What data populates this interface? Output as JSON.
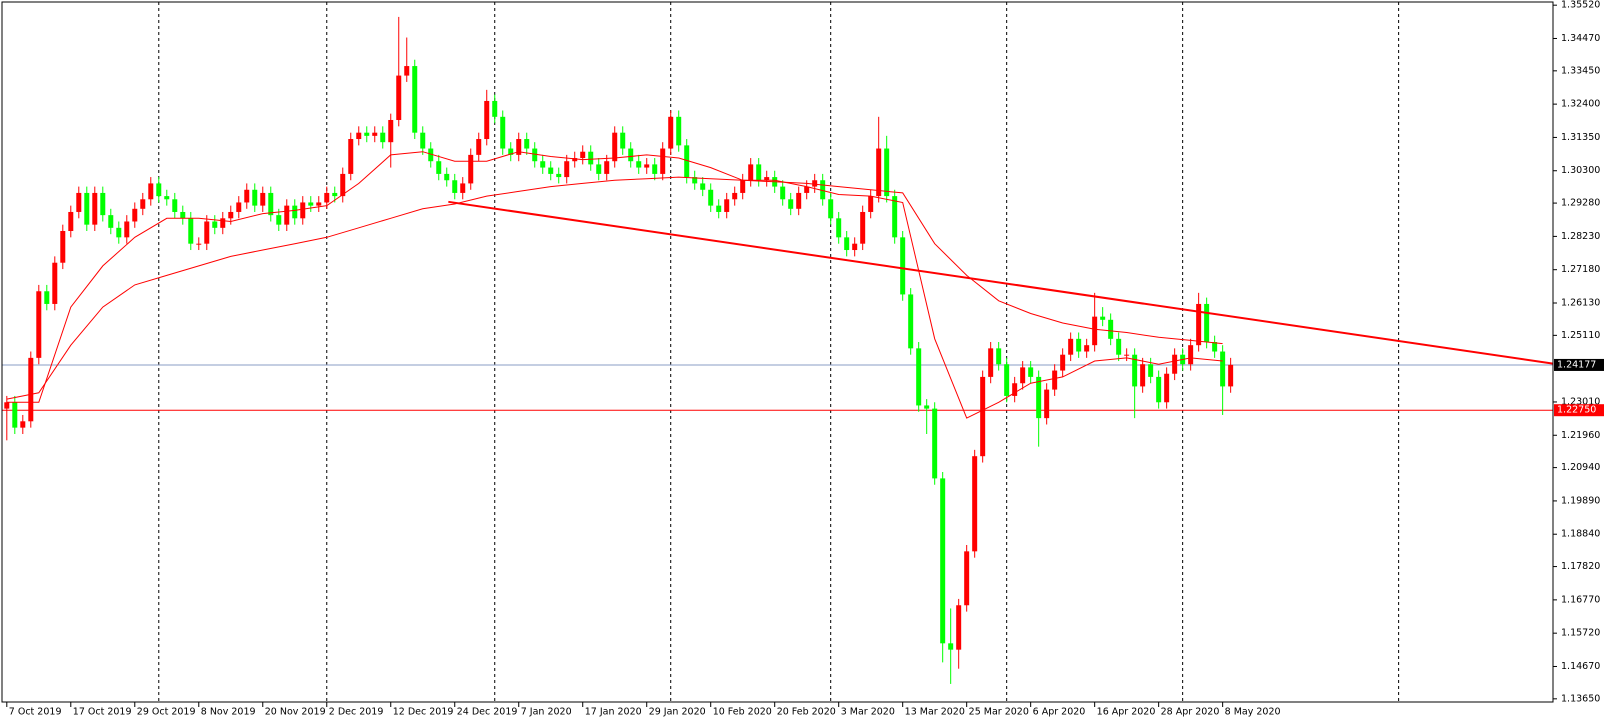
{
  "chart_data": {
    "type": "candlestick",
    "up_color": "#ff0000",
    "down_color": "#00ff00",
    "ylim": [
      1.1355,
      1.3562
    ],
    "xlim": [
      -0.6,
      193.3
    ],
    "yticks": [
      {
        "value": 1.3552,
        "label": "1.35520"
      },
      {
        "value": 1.3447,
        "label": "1.34470"
      },
      {
        "value": 1.3345,
        "label": "1.33450"
      },
      {
        "value": 1.324,
        "label": "1.32400"
      },
      {
        "value": 1.3135,
        "label": "1.31350"
      },
      {
        "value": 1.303,
        "label": "1.30300"
      },
      {
        "value": 1.2928,
        "label": "1.29280"
      },
      {
        "value": 1.2823,
        "label": "1.28230"
      },
      {
        "value": 1.2718,
        "label": "1.27180"
      },
      {
        "value": 1.2613,
        "label": "1.26130"
      },
      {
        "value": 1.2511,
        "label": "1.25110"
      },
      {
        "value": 1.2301,
        "label": "1.23010"
      },
      {
        "value": 1.2196,
        "label": "1.21960"
      },
      {
        "value": 1.2094,
        "label": "1.20940"
      },
      {
        "value": 1.1989,
        "label": "1.19890"
      },
      {
        "value": 1.1884,
        "label": "1.18840"
      },
      {
        "value": 1.1782,
        "label": "1.17820"
      },
      {
        "value": 1.1677,
        "label": "1.16770"
      },
      {
        "value": 1.1572,
        "label": "1.15720"
      },
      {
        "value": 1.1467,
        "label": "1.14670"
      },
      {
        "value": 1.1365,
        "label": "1.13650"
      }
    ],
    "xticks": [
      {
        "value": 0,
        "label": "7 Oct 2019"
      },
      {
        "value": 8,
        "label": "17 Oct 2019"
      },
      {
        "value": 16,
        "label": "29 Oct 2019"
      },
      {
        "value": 24,
        "label": "8 Nov 2019"
      },
      {
        "value": 32,
        "label": "20 Nov 2019"
      },
      {
        "value": 40,
        "label": "2 Dec 2019"
      },
      {
        "value": 48,
        "label": "12 Dec 2019"
      },
      {
        "value": 56,
        "label": "24 Dec 2019"
      },
      {
        "value": 64,
        "label": "7 Jan 2020"
      },
      {
        "value": 72,
        "label": "17 Jan 2020"
      },
      {
        "value": 80,
        "label": "29 Jan 2020"
      },
      {
        "value": 88,
        "label": "10 Feb 2020"
      },
      {
        "value": 96,
        "label": "20 Feb 2020"
      },
      {
        "value": 104,
        "label": "3 Mar 2020"
      },
      {
        "value": 112,
        "label": "13 Mar 2020"
      },
      {
        "value": 120,
        "label": "25 Mar 2020"
      },
      {
        "value": 128,
        "label": "6 Apr 2020"
      },
      {
        "value": 136,
        "label": "16 Apr 2020"
      },
      {
        "value": 144,
        "label": "28 Apr 2020"
      },
      {
        "value": 152,
        "label": "8 May 2020"
      }
    ],
    "xgrid": [
      19,
      40,
      61,
      83,
      103,
      125,
      147,
      174
    ],
    "ohlc": [
      [
        1.228,
        1.232,
        1.218,
        1.23
      ],
      [
        1.23,
        1.232,
        1.22,
        1.222
      ],
      [
        1.222,
        1.226,
        1.22,
        1.224
      ],
      [
        1.224,
        1.246,
        1.222,
        1.244
      ],
      [
        1.244,
        1.267,
        1.242,
        1.265
      ],
      [
        1.265,
        1.267,
        1.259,
        1.261
      ],
      [
        1.261,
        1.276,
        1.259,
        1.274
      ],
      [
        1.274,
        1.286,
        1.272,
        1.284
      ],
      [
        1.284,
        1.292,
        1.282,
        1.29
      ],
      [
        1.29,
        1.298,
        1.288,
        1.296
      ],
      [
        1.296,
        1.298,
        1.284,
        1.286
      ],
      [
        1.286,
        1.298,
        1.284,
        1.296
      ],
      [
        1.296,
        1.298,
        1.287,
        1.289
      ],
      [
        1.289,
        1.291,
        1.283,
        1.285
      ],
      [
        1.285,
        1.287,
        1.28,
        1.282
      ],
      [
        1.282,
        1.289,
        1.28,
        1.287
      ],
      [
        1.287,
        1.293,
        1.285,
        1.291
      ],
      [
        1.291,
        1.296,
        1.289,
        1.294
      ],
      [
        1.294,
        1.301,
        1.292,
        1.299
      ],
      [
        1.299,
        1.301,
        1.293,
        1.295
      ],
      [
        1.295,
        1.297,
        1.292,
        1.294
      ],
      [
        1.294,
        1.296,
        1.288,
        1.29
      ],
      [
        1.29,
        1.292,
        1.286,
        1.288
      ],
      [
        1.288,
        1.29,
        1.278,
        1.28
      ],
      [
        1.28,
        1.282,
        1.278,
        1.28
      ],
      [
        1.28,
        1.289,
        1.278,
        1.287
      ],
      [
        1.287,
        1.289,
        1.283,
        1.285
      ],
      [
        1.285,
        1.29,
        1.283,
        1.288
      ],
      [
        1.288,
        1.292,
        1.286,
        1.29
      ],
      [
        1.29,
        1.295,
        1.288,
        1.293
      ],
      [
        1.293,
        1.299,
        1.291,
        1.297
      ],
      [
        1.297,
        1.299,
        1.29,
        1.292
      ],
      [
        1.292,
        1.298,
        1.29,
        1.296
      ],
      [
        1.296,
        1.298,
        1.287,
        1.289
      ],
      [
        1.289,
        1.291,
        1.284,
        1.286
      ],
      [
        1.286,
        1.294,
        1.284,
        1.292
      ],
      [
        1.292,
        1.294,
        1.286,
        1.288
      ],
      [
        1.288,
        1.295,
        1.286,
        1.293
      ],
      [
        1.293,
        1.295,
        1.29,
        1.292
      ],
      [
        1.292,
        1.295,
        1.29,
        1.293
      ],
      [
        1.293,
        1.298,
        1.291,
        1.296
      ],
      [
        1.296,
        1.298,
        1.293,
        1.295
      ],
      [
        1.295,
        1.304,
        1.293,
        1.302
      ],
      [
        1.302,
        1.315,
        1.3,
        1.313
      ],
      [
        1.313,
        1.317,
        1.311,
        1.315
      ],
      [
        1.315,
        1.317,
        1.312,
        1.314
      ],
      [
        1.314,
        1.317,
        1.312,
        1.315
      ],
      [
        1.315,
        1.317,
        1.31,
        1.312
      ],
      [
        1.312,
        1.321,
        1.304,
        1.319
      ],
      [
        1.319,
        1.3515,
        1.317,
        1.333
      ],
      [
        1.333,
        1.345,
        1.331,
        1.336
      ],
      [
        1.336,
        1.338,
        1.313,
        1.315
      ],
      [
        1.315,
        1.317,
        1.308,
        1.31
      ],
      [
        1.31,
        1.312,
        1.304,
        1.306
      ],
      [
        1.306,
        1.308,
        1.3,
        1.302
      ],
      [
        1.302,
        1.304,
        1.298,
        1.3
      ],
      [
        1.3,
        1.302,
        1.294,
        1.296
      ],
      [
        1.296,
        1.301,
        1.294,
        1.299
      ],
      [
        1.299,
        1.31,
        1.297,
        1.308
      ],
      [
        1.308,
        1.315,
        1.306,
        1.313
      ],
      [
        1.313,
        1.3285,
        1.311,
        1.325
      ],
      [
        1.325,
        1.327,
        1.318,
        1.32
      ],
      [
        1.32,
        1.322,
        1.308,
        1.31
      ],
      [
        1.31,
        1.312,
        1.306,
        1.308
      ],
      [
        1.308,
        1.315,
        1.306,
        1.313
      ],
      [
        1.313,
        1.315,
        1.308,
        1.31
      ],
      [
        1.31,
        1.312,
        1.304,
        1.306
      ],
      [
        1.306,
        1.308,
        1.302,
        1.304
      ],
      [
        1.304,
        1.306,
        1.3,
        1.302
      ],
      [
        1.302,
        1.304,
        1.299,
        1.301
      ],
      [
        1.301,
        1.308,
        1.299,
        1.306
      ],
      [
        1.306,
        1.309,
        1.304,
        1.307
      ],
      [
        1.307,
        1.311,
        1.305,
        1.309
      ],
      [
        1.309,
        1.311,
        1.303,
        1.305
      ],
      [
        1.305,
        1.307,
        1.3,
        1.302
      ],
      [
        1.302,
        1.308,
        1.3,
        1.306
      ],
      [
        1.306,
        1.317,
        1.304,
        1.315
      ],
      [
        1.315,
        1.317,
        1.308,
        1.31
      ],
      [
        1.31,
        1.312,
        1.304,
        1.306
      ],
      [
        1.306,
        1.308,
        1.302,
        1.304
      ],
      [
        1.304,
        1.307,
        1.302,
        1.305
      ],
      [
        1.305,
        1.307,
        1.3,
        1.302
      ],
      [
        1.302,
        1.312,
        1.3,
        1.31
      ],
      [
        1.31,
        1.322,
        1.308,
        1.32
      ],
      [
        1.32,
        1.322,
        1.309,
        1.311
      ],
      [
        1.311,
        1.313,
        1.299,
        1.301
      ],
      [
        1.301,
        1.303,
        1.297,
        1.299
      ],
      [
        1.299,
        1.301,
        1.295,
        1.297
      ],
      [
        1.297,
        1.299,
        1.29,
        1.292
      ],
      [
        1.292,
        1.294,
        1.288,
        1.29
      ],
      [
        1.29,
        1.296,
        1.288,
        1.294
      ],
      [
        1.294,
        1.298,
        1.292,
        1.296
      ],
      [
        1.296,
        1.302,
        1.294,
        1.3
      ],
      [
        1.3,
        1.307,
        1.298,
        1.305
      ],
      [
        1.305,
        1.307,
        1.298,
        1.3
      ],
      [
        1.3,
        1.303,
        1.298,
        1.301
      ],
      [
        1.301,
        1.303,
        1.296,
        1.298
      ],
      [
        1.298,
        1.3,
        1.292,
        1.294
      ],
      [
        1.294,
        1.296,
        1.289,
        1.291
      ],
      [
        1.291,
        1.298,
        1.289,
        1.296
      ],
      [
        1.296,
        1.3,
        1.294,
        1.298
      ],
      [
        1.298,
        1.302,
        1.296,
        1.3
      ],
      [
        1.3,
        1.302,
        1.292,
        1.294
      ],
      [
        1.294,
        1.296,
        1.286,
        1.288
      ],
      [
        1.288,
        1.29,
        1.28,
        1.282
      ],
      [
        1.282,
        1.284,
        1.276,
        1.278
      ],
      [
        1.278,
        1.282,
        1.276,
        1.28
      ],
      [
        1.28,
        1.292,
        1.278,
        1.29
      ],
      [
        1.29,
        1.297,
        1.288,
        1.295
      ],
      [
        1.295,
        1.32,
        1.293,
        1.31
      ],
      [
        1.31,
        1.314,
        1.293,
        1.295
      ],
      [
        1.295,
        1.297,
        1.28,
        1.282
      ],
      [
        1.282,
        1.284,
        1.262,
        1.264
      ],
      [
        1.264,
        1.266,
        1.245,
        1.247
      ],
      [
        1.247,
        1.249,
        1.227,
        1.229
      ],
      [
        1.229,
        1.231,
        1.22,
        1.228
      ],
      [
        1.228,
        1.23,
        1.204,
        1.206
      ],
      [
        1.206,
        1.208,
        1.148,
        1.154
      ],
      [
        1.154,
        1.165,
        1.1412,
        1.152
      ],
      [
        1.152,
        1.168,
        1.146,
        1.166
      ],
      [
        1.166,
        1.185,
        1.164,
        1.183
      ],
      [
        1.183,
        1.215,
        1.181,
        1.213
      ],
      [
        1.213,
        1.24,
        1.211,
        1.238
      ],
      [
        1.238,
        1.249,
        1.236,
        1.247
      ],
      [
        1.247,
        1.249,
        1.24,
        1.242
      ],
      [
        1.242,
        1.244,
        1.23,
        1.232
      ],
      [
        1.232,
        1.238,
        1.23,
        1.236
      ],
      [
        1.236,
        1.243,
        1.234,
        1.241
      ],
      [
        1.241,
        1.243,
        1.236,
        1.238
      ],
      [
        1.238,
        1.24,
        1.216,
        1.225
      ],
      [
        1.225,
        1.236,
        1.223,
        1.234
      ],
      [
        1.234,
        1.242,
        1.232,
        1.24
      ],
      [
        1.24,
        1.247,
        1.238,
        1.245
      ],
      [
        1.245,
        1.252,
        1.243,
        1.25
      ],
      [
        1.25,
        1.252,
        1.244,
        1.246
      ],
      [
        1.246,
        1.25,
        1.244,
        1.248
      ],
      [
        1.248,
        1.2645,
        1.246,
        1.257
      ],
      [
        1.257,
        1.26,
        1.254,
        1.256
      ],
      [
        1.256,
        1.258,
        1.248,
        1.25
      ],
      [
        1.25,
        1.252,
        1.243,
        1.245
      ],
      [
        1.245,
        1.247,
        1.243,
        1.245
      ],
      [
        1.245,
        1.247,
        1.225,
        1.235
      ],
      [
        1.235,
        1.244,
        1.233,
        1.242
      ],
      [
        1.242,
        1.244,
        1.236,
        1.238
      ],
      [
        1.238,
        1.24,
        1.228,
        1.23
      ],
      [
        1.23,
        1.241,
        1.228,
        1.239
      ],
      [
        1.239,
        1.247,
        1.237,
        1.245
      ],
      [
        1.245,
        1.247,
        1.24,
        1.242
      ],
      [
        1.242,
        1.25,
        1.24,
        1.248
      ],
      [
        1.248,
        1.2645,
        1.246,
        1.261
      ],
      [
        1.261,
        1.263,
        1.247,
        1.249
      ],
      [
        1.249,
        1.251,
        1.244,
        1.246
      ],
      [
        1.246,
        1.248,
        1.226,
        1.235
      ],
      [
        1.235,
        1.244,
        1.233,
        1.2418
      ]
    ],
    "moving_averages": [
      {
        "color": "#ff0000",
        "x": [
          0,
          4,
          8,
          12,
          16,
          20,
          24,
          28,
          32,
          36,
          40,
          44,
          48,
          52,
          56,
          60,
          64,
          68,
          72,
          76,
          80,
          84,
          88,
          92,
          96,
          100,
          104,
          108,
          112,
          116,
          120,
          124,
          128,
          132,
          136,
          140,
          144,
          148,
          152
        ],
        "values": [
          1.23,
          1.23,
          1.26,
          1.273,
          1.282,
          1.288,
          1.288,
          1.287,
          1.2895,
          1.2905,
          1.292,
          1.299,
          1.308,
          1.309,
          1.306,
          1.306,
          1.309,
          1.3075,
          1.3065,
          1.307,
          1.308,
          1.307,
          1.304,
          1.3,
          1.3,
          1.298,
          1.2955,
          1.295,
          1.293,
          1.25,
          1.225,
          1.23,
          1.236,
          1.238,
          1.243,
          1.244,
          1.242,
          1.244,
          1.243
        ]
      },
      {
        "color": "#ff0000",
        "x": [
          0,
          4,
          8,
          12,
          16,
          20,
          24,
          28,
          32,
          36,
          40,
          44,
          48,
          52,
          56,
          60,
          64,
          68,
          72,
          76,
          80,
          84,
          88,
          92,
          96,
          100,
          104,
          108,
          112,
          116,
          120,
          124,
          128,
          132,
          136,
          140,
          144,
          148,
          152
        ],
        "values": [
          1.231,
          1.233,
          1.248,
          1.26,
          1.267,
          1.27,
          1.273,
          1.276,
          1.278,
          1.28,
          1.282,
          1.285,
          1.288,
          1.291,
          1.2925,
          1.295,
          1.2965,
          1.298,
          1.299,
          1.3,
          1.3005,
          1.301,
          1.3005,
          1.3,
          1.2995,
          1.299,
          1.298,
          1.297,
          1.296,
          1.28,
          1.27,
          1.262,
          1.258,
          1.255,
          1.253,
          1.252,
          1.2505,
          1.2495,
          1.2485
        ]
      }
    ],
    "trendline": {
      "color": "#ff0000",
      "x": [
        55.2,
        193.3
      ],
      "y": [
        1.2932,
        1.2422
      ]
    },
    "price_line": {
      "value": 1.24177,
      "label": "1.24177",
      "color": "#8a9cc4"
    },
    "level_line": {
      "value": 1.2275,
      "label": "1.22750",
      "color": "#ff0000"
    }
  }
}
